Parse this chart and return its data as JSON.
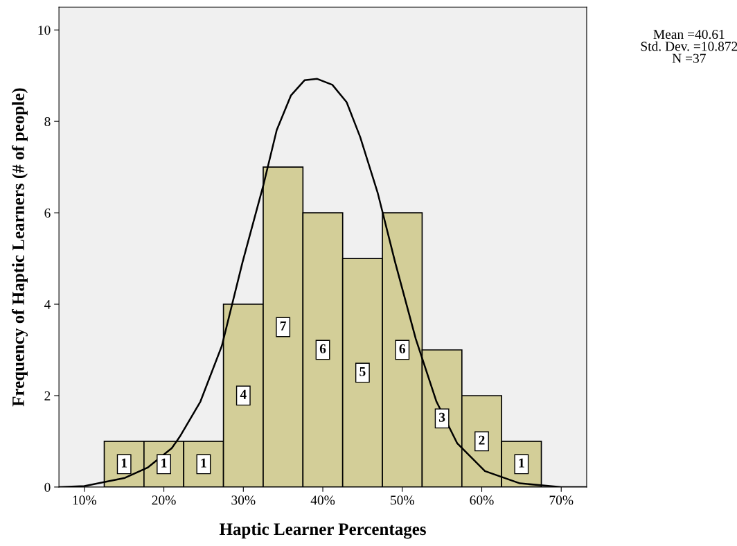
{
  "chart_data": {
    "type": "histogram",
    "xlabel": "Haptic Learner Percentages",
    "ylabel": "Frequency of Haptic Learners (# of people)",
    "bins": [
      12.5,
      17.5,
      22.5,
      27.5,
      32.5,
      37.5,
      42.5,
      47.5,
      52.5,
      57.5,
      62.5,
      67.5
    ],
    "values": [
      1,
      1,
      1,
      4,
      7,
      6,
      5,
      6,
      3,
      2,
      1
    ],
    "color": "#d3ce98",
    "value_labels": [
      "1",
      "1",
      "1",
      "4",
      "7",
      "6",
      "5",
      "6",
      "3",
      "2",
      "1"
    ],
    "series": [
      {
        "type": "line",
        "color": "#000000",
        "x": [
          6.8,
          10,
          15.1,
          18,
          21,
          22,
          24.6,
          27.3,
          29.9,
          32.5,
          34.2,
          36,
          37.7,
          39.3,
          41.2,
          43,
          44.7,
          46.9,
          49.1,
          51.7,
          54.3,
          56.9,
          60.4,
          64.8,
          70,
          73.2
        ],
        "values": [
          0,
          0.02,
          0.2,
          0.43,
          0.85,
          1.1,
          1.87,
          3.09,
          4.92,
          6.59,
          7.81,
          8.57,
          8.9,
          8.93,
          8.8,
          8.42,
          7.66,
          6.44,
          4.92,
          3.24,
          1.87,
          0.96,
          0.35,
          0.08,
          0,
          0
        ]
      }
    ],
    "xlim": [
      6.8,
      73.2
    ],
    "ylim": [
      0,
      10.5
    ],
    "xticks": [
      {
        "value": 10,
        "label": "10%"
      },
      {
        "value": 20,
        "label": "20%"
      },
      {
        "value": 30,
        "label": "30%"
      },
      {
        "value": 40,
        "label": "40%"
      },
      {
        "value": 50,
        "label": "50%"
      },
      {
        "value": 60,
        "label": "60%"
      },
      {
        "value": 70,
        "label": "70%"
      }
    ],
    "yticks": [
      0,
      2,
      4,
      6,
      8,
      10
    ],
    "annotations": [
      "Mean =40.61",
      "Std. Dev. =10.872",
      "N =37"
    ]
  }
}
